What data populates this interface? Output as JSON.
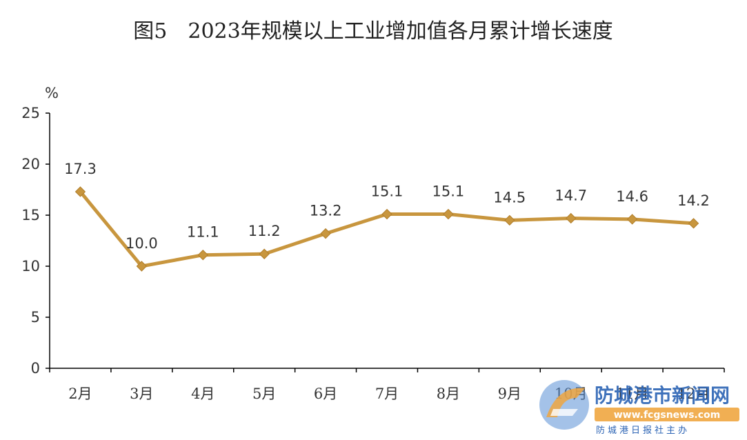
{
  "chart_data": {
    "type": "line",
    "title": "图5　2023年规模以上工业增加值各月累计增长速度",
    "ylabel": "%",
    "xlabel": "",
    "categories": [
      "2月",
      "3月",
      "4月",
      "5月",
      "6月",
      "7月",
      "8月",
      "9月",
      "10月",
      "11月",
      "12月"
    ],
    "series": [
      {
        "values": [
          17.3,
          10.0,
          11.1,
          11.2,
          13.2,
          15.1,
          15.1,
          14.5,
          14.7,
          14.6,
          14.2
        ],
        "labels": [
          "17.3",
          "10.0",
          "11.1",
          "11.2",
          "13.2",
          "15.1",
          "15.1",
          "14.5",
          "14.7",
          "14.6",
          "14.2"
        ],
        "color": "#C8963E"
      }
    ],
    "ylim": [
      0,
      25
    ],
    "yticks": [
      "0",
      "5",
      "10",
      "15",
      "20",
      "25"
    ],
    "grid": false,
    "legend": "none",
    "marker": "diamond"
  },
  "watermark": {
    "logo_icon": "fcg-logo-icon",
    "name": "防城港市新闻网",
    "url": "www.fcgsnews.com",
    "subtitle": "防城港日报社主办"
  }
}
